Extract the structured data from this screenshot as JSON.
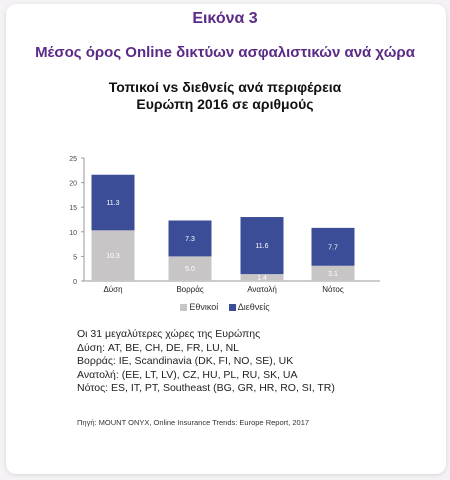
{
  "figure": {
    "title": "Εικόνα 3",
    "subtitle": "Μέσος όρος Online δικτύων ασφαλιστικών ανά χώρα"
  },
  "chart_data": {
    "type": "bar",
    "stacked": true,
    "title_lines": [
      "Τοπικοί vs διεθνείς ανά περιφέρεια",
      "Ευρώπη 2016 σε αριθμούς"
    ],
    "categories": [
      "Δύση",
      "Βορράς",
      "Ανατολή",
      "Νότος"
    ],
    "series": [
      {
        "name": "Εθνικοί",
        "color": "#c8c5c6",
        "values": [
          10.3,
          5.0,
          1.4,
          3.1
        ],
        "labels": [
          "10.3",
          "5.0",
          "1.4",
          "3.1"
        ]
      },
      {
        "name": "Διεθνείς",
        "color": "#3b4d97",
        "values": [
          11.3,
          7.3,
          11.6,
          7.7
        ],
        "labels": [
          "11.3",
          "7.3",
          "11.6",
          "7.7"
        ]
      }
    ],
    "ylim": [
      0,
      25
    ],
    "yticks": [
      "0",
      "5",
      "10",
      "15",
      "20",
      "25"
    ],
    "grid": false,
    "legend_position": "bottom"
  },
  "notes": [
    "Οι 31 μεγαλύτερες χώρες της Ευρώπης",
    "Δύση: AT, BE, CH, DE, FR, LU, NL",
    "Βορράς: IE, Scandinavia (DK, FI, NO, SE), UK",
    "Ανατολή: (EE, LT, LV), CZ, HU, PL, RU, SK, UA",
    "Νότος: ES, IT, PT, Southeast (BG, GR, HR, RO, SI, TR)"
  ],
  "source": "Πηγή: MOUNT ONYX, Online Insurance Trends: Europe Report, 2017"
}
